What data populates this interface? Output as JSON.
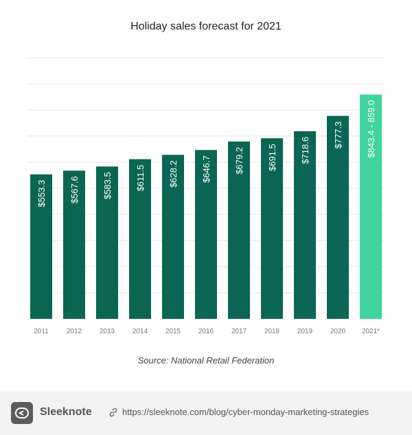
{
  "chart_data": {
    "type": "bar",
    "title": "Holiday sales forecast for 2021",
    "xlabel": "",
    "ylabel": "",
    "categories": [
      "2011",
      "2012",
      "2013",
      "2014",
      "2015",
      "2016",
      "2017",
      "2018",
      "2019",
      "2020",
      "2021*"
    ],
    "values": [
      553.3,
      567.6,
      583.5,
      611.5,
      628.2,
      646.7,
      679.2,
      691.5,
      718.6,
      777.3,
      859.0
    ],
    "data_labels": [
      "$553.3",
      "$567.6",
      "$583.5",
      "$611.5",
      "$628.2",
      "$646.7",
      "$679.2",
      "$691.5",
      "$718.6",
      "$777.3",
      "$843.4 - 859.0"
    ],
    "forecast_range": [
      843.4,
      859.0
    ],
    "highlight_index": 10,
    "ylim": [
      0,
      1000
    ],
    "grid": true,
    "legend": "none",
    "colors": {
      "bar": "#0a6652",
      "highlight": "#3fd49f",
      "grid": "#e6e6e6",
      "label": "#ffffff",
      "tick": "#777777"
    }
  },
  "source": "Source: National Retail Federation",
  "footer": {
    "brand": "Sleeknote",
    "logo_icon": "sleeknote-logo-icon",
    "link_icon": "chain-link-icon",
    "url": "https://sleeknote.com/blog/cyber-monday-marketing-strategies"
  }
}
